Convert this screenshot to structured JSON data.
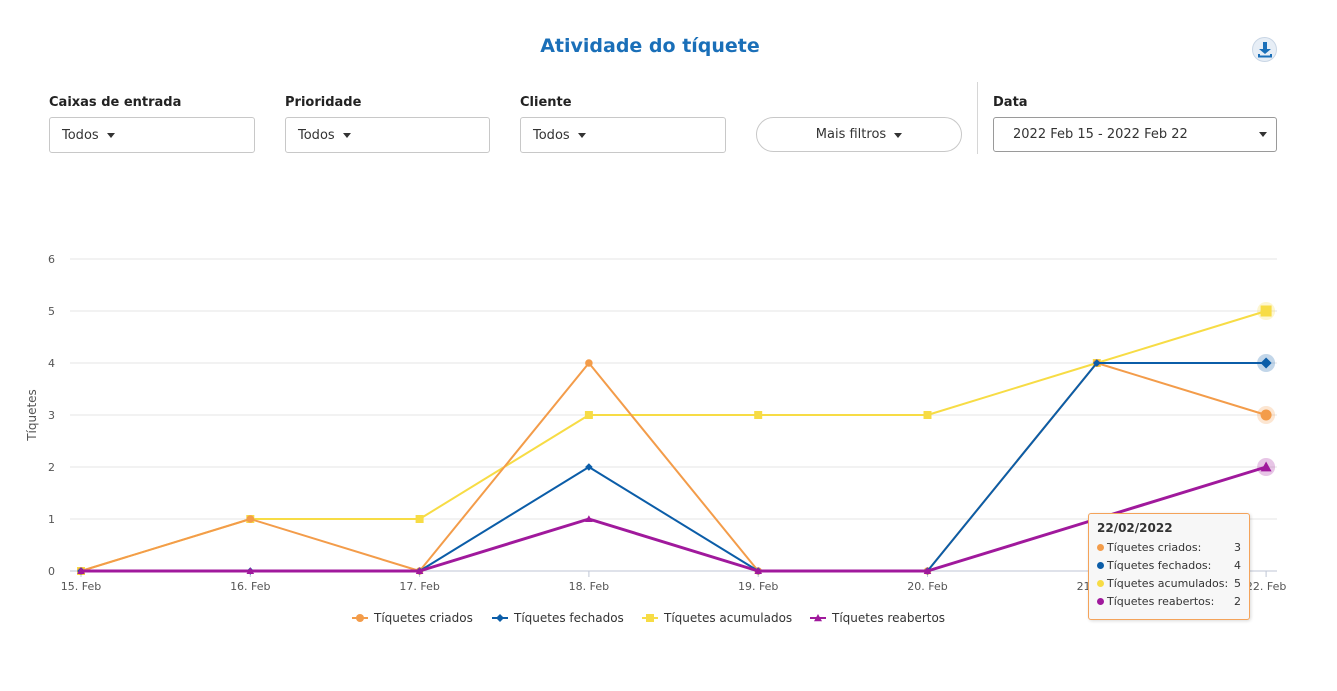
{
  "page": {
    "title": "Atividade do tíquete",
    "download_icon": "download-icon"
  },
  "filters": {
    "inboxes": {
      "label": "Caixas de entrada",
      "value": "Todos"
    },
    "priority": {
      "label": "Prioridade",
      "value": "Todos"
    },
    "client": {
      "label": "Cliente",
      "value": "Todos"
    },
    "more_filters": {
      "label": "Mais filtros"
    },
    "date": {
      "label": "Data",
      "value": "2022 Feb 15 - 2022 Feb 22"
    }
  },
  "tooltip": {
    "date": "22/02/2022",
    "rows": [
      {
        "name": "Tíquetes criados:",
        "value": "3",
        "color": "#f39c4a"
      },
      {
        "name": "Tíquetes fechados:",
        "value": "4",
        "color": "#0b5da8"
      },
      {
        "name": "Tíquetes acumulados:",
        "value": "5",
        "color": "#f7dc45"
      },
      {
        "name": "Tíquetes reabertos:",
        "value": "2",
        "color": "#a0199c"
      }
    ]
  },
  "chart_data": {
    "type": "line",
    "title": "",
    "xlabel": "",
    "ylabel": "Tíquetes",
    "ylim": [
      0,
      6
    ],
    "yticks": [
      0,
      1,
      2,
      3,
      4,
      5,
      6
    ],
    "categories": [
      "15. Feb",
      "16. Feb",
      "17. Feb",
      "18. Feb",
      "19. Feb",
      "20. Feb",
      "21. Feb",
      "22. Feb"
    ],
    "grid": true,
    "legend": "bottom-center",
    "highlighted_index": 7,
    "series": [
      {
        "name": "Tíquetes criados",
        "color": "#f39c4a",
        "marker": "circle",
        "values": [
          0,
          1,
          0,
          4,
          0,
          0,
          4,
          3
        ]
      },
      {
        "name": "Tíquetes fechados",
        "color": "#0b5da8",
        "marker": "diamond",
        "values": [
          0,
          0,
          0,
          2,
          0,
          0,
          4,
          4
        ]
      },
      {
        "name": "Tíquetes acumulados",
        "color": "#f7dc45",
        "marker": "square",
        "values": [
          0,
          1,
          1,
          3,
          3,
          3,
          4,
          5
        ]
      },
      {
        "name": "Tíquetes reabertos",
        "color": "#a0199c",
        "marker": "triangle",
        "values": [
          0,
          0,
          0,
          1,
          0,
          0,
          1,
          2
        ]
      }
    ]
  }
}
